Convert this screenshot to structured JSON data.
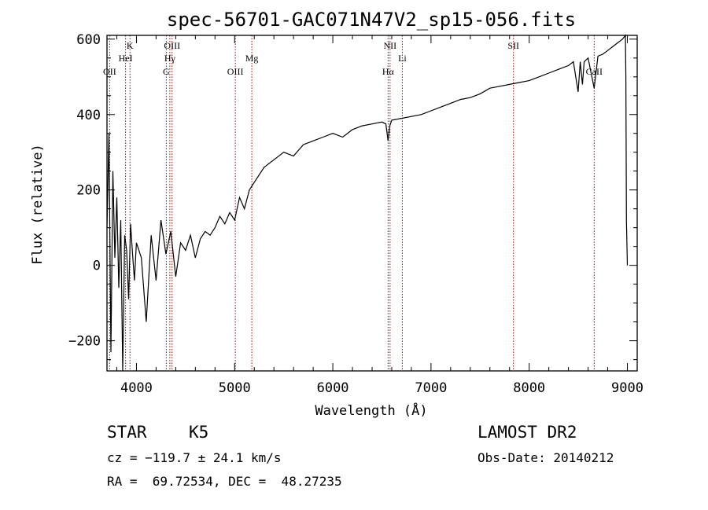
{
  "chart_data": {
    "type": "line",
    "title": "spec-56701-GAC071N47V2_sp15-056.fits",
    "xlabel": "Wavelength (Å)",
    "ylabel": "Flux (relative)",
    "xlim": [
      3700,
      9100
    ],
    "ylim": [
      -280,
      610
    ],
    "xticks": [
      4000,
      5000,
      6000,
      7000,
      8000,
      9000
    ],
    "yticks": [
      -200,
      0,
      200,
      400,
      600
    ],
    "grid": false,
    "line_color": "#000000",
    "marker_color": "#aa0000",
    "series": [
      {
        "x": [
          3700,
          3720,
          3740,
          3760,
          3780,
          3800,
          3820,
          3840,
          3860,
          3880,
          3900,
          3920,
          3940,
          3960,
          3980,
          4000,
          4050,
          4100,
          4150,
          4200,
          4250,
          4300,
          4350,
          4400,
          4450,
          4500,
          4550,
          4600,
          4650,
          4700,
          4750,
          4800,
          4850,
          4900,
          4950,
          5000,
          5050,
          5100,
          5150,
          5200,
          5300,
          5400,
          5500,
          5600,
          5700,
          5800,
          5900,
          6000,
          6100,
          6200,
          6300,
          6400,
          6500,
          6540,
          6563,
          6580,
          6600,
          6700,
          6800,
          6900,
          7000,
          7100,
          7200,
          7300,
          7400,
          7500,
          7600,
          7700,
          7800,
          7900,
          8000,
          8100,
          8200,
          8300,
          8400,
          8450,
          8498,
          8520,
          8542,
          8560,
          8600,
          8662,
          8700,
          8750,
          8800,
          8850,
          8900,
          8950,
          8980,
          8985,
          8990,
          9000
        ],
        "y": [
          100,
          350,
          -230,
          250,
          20,
          180,
          -60,
          120,
          -280,
          80,
          40,
          -90,
          110,
          30,
          -40,
          60,
          20,
          -150,
          80,
          -40,
          120,
          30,
          90,
          -30,
          60,
          40,
          80,
          20,
          70,
          90,
          80,
          100,
          130,
          110,
          140,
          120,
          180,
          150,
          200,
          220,
          260,
          280,
          300,
          290,
          320,
          330,
          340,
          350,
          340,
          360,
          370,
          375,
          380,
          375,
          330,
          370,
          385,
          390,
          395,
          400,
          410,
          420,
          430,
          440,
          445,
          455,
          470,
          475,
          480,
          485,
          490,
          500,
          510,
          520,
          530,
          540,
          460,
          540,
          480,
          540,
          550,
          470,
          555,
          560,
          570,
          580,
          590,
          600,
          610,
          500,
          120,
          0
        ]
      }
    ],
    "line_markers": [
      {
        "label": "OII",
        "wavelength": 3727,
        "row": 3
      },
      {
        "label": "K",
        "wavelength": 3934,
        "row": 1
      },
      {
        "label": "HeI",
        "wavelength": 3889,
        "row": 2
      },
      {
        "label": "OIII",
        "wavelength": 4363,
        "row": 1
      },
      {
        "label": "Hγ",
        "wavelength": 4340,
        "row": 2
      },
      {
        "label": "G",
        "wavelength": 4304,
        "row": 3
      },
      {
        "label": "OIII",
        "wavelength": 5007,
        "row": 3
      },
      {
        "label": "Mg",
        "wavelength": 5175,
        "row": 2
      },
      {
        "label": "NII",
        "wavelength": 6583,
        "row": 1
      },
      {
        "label": "Li",
        "wavelength": 6708,
        "row": 2
      },
      {
        "label": "Hα",
        "wavelength": 6563,
        "row": 3
      },
      {
        "label": "SII",
        "wavelength": 7840,
        "row": 1
      },
      {
        "label": "CaII",
        "wavelength": 8662,
        "row": 3
      }
    ]
  },
  "info": {
    "class": "STAR",
    "subclass": "K5",
    "survey": "LAMOST DR2",
    "cz": "cz = −119.7 ± 24.1 km/s",
    "obs_date": "Obs-Date: 20140212",
    "coords": "RA =  69.72534, DEC =  48.27235"
  }
}
